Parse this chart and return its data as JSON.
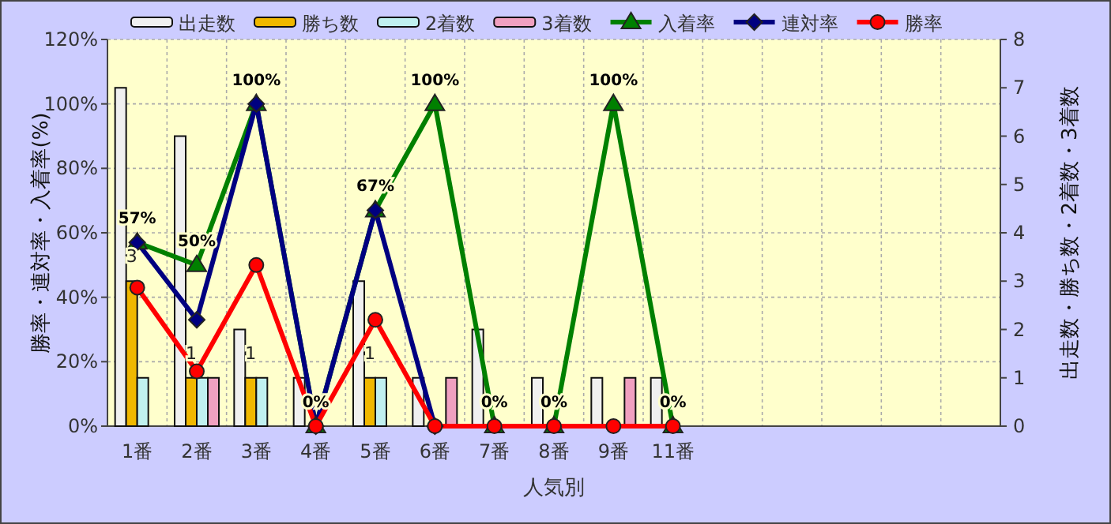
{
  "chart_data": {
    "type": "bar",
    "xlabel": "人気別",
    "ylabel": "勝率・連対率・入着率(%)",
    "y2label": "出走数・勝ち数・2着数・3着数",
    "categories": [
      "1番",
      "2番",
      "3番",
      "4番",
      "5番",
      "6番",
      "7番",
      "8番",
      "9番",
      "11番",
      null,
      null,
      null,
      null,
      null
    ],
    "series": [
      {
        "name": "出走数",
        "axis": "y2",
        "color": "#f0f0f0",
        "values": [
          7,
          6,
          2,
          1,
          3,
          1,
          2,
          1,
          1,
          1,
          null,
          null,
          null,
          null,
          null
        ]
      },
      {
        "name": "勝ち数",
        "axis": "y2",
        "color": "#f0b800",
        "values": [
          3,
          1,
          1,
          0,
          1,
          0,
          0,
          0,
          0,
          0,
          null,
          null,
          null,
          null,
          null
        ],
        "value_labels": [
          "3",
          "1",
          "1",
          null,
          "1",
          null,
          null,
          null,
          null,
          null,
          null,
          null,
          null,
          null,
          null
        ]
      },
      {
        "name": "2着数",
        "axis": "y2",
        "color": "#c0f0f0",
        "values": [
          1,
          1,
          1,
          0,
          1,
          0,
          0,
          0,
          0,
          0,
          null,
          null,
          null,
          null,
          null
        ]
      },
      {
        "name": "3着数",
        "axis": "y2",
        "color": "#f0a0c0",
        "values": [
          0,
          1,
          0,
          0,
          0,
          1,
          0,
          0,
          1,
          0,
          null,
          null,
          null,
          null,
          null
        ]
      },
      {
        "name": "入着率",
        "type": "line",
        "axis": "y",
        "color": "#008000",
        "marker": "triangle",
        "values": [
          57,
          50,
          100,
          0,
          67,
          100,
          0,
          0,
          100,
          0,
          null,
          null,
          null,
          null,
          null
        ],
        "value_labels": [
          "57%",
          "50%",
          "100%",
          "0%",
          "67%",
          "100%",
          "0%",
          "0%",
          "100%",
          "0%",
          null,
          null,
          null,
          null,
          null
        ]
      },
      {
        "name": "連対率",
        "type": "line",
        "axis": "y",
        "color": "#000080",
        "marker": "diamond",
        "values": [
          57,
          33,
          100,
          0,
          67,
          0,
          null,
          null,
          null,
          null,
          null,
          null,
          null,
          null,
          null
        ]
      },
      {
        "name": "勝率",
        "type": "line",
        "axis": "y",
        "color": "#ff0000",
        "marker": "circle",
        "values": [
          43,
          17,
          50,
          0,
          33,
          0,
          0,
          0,
          0,
          0,
          null,
          null,
          null,
          null,
          null
        ]
      }
    ],
    "ylim": [
      0,
      120
    ],
    "yticks": [
      {
        "value": 0,
        "label": "0%"
      },
      {
        "value": 20,
        "label": "20%"
      },
      {
        "value": 40,
        "label": "40%"
      },
      {
        "value": 60,
        "label": "60%"
      },
      {
        "value": 80,
        "label": "80%"
      },
      {
        "value": 100,
        "label": "100%"
      },
      {
        "value": 120,
        "label": "120%"
      }
    ],
    "y2lim": [
      0,
      8
    ],
    "y2ticks": [
      0,
      1,
      2,
      3,
      4,
      5,
      6,
      7,
      8
    ],
    "grid": true,
    "legend": "top"
  }
}
